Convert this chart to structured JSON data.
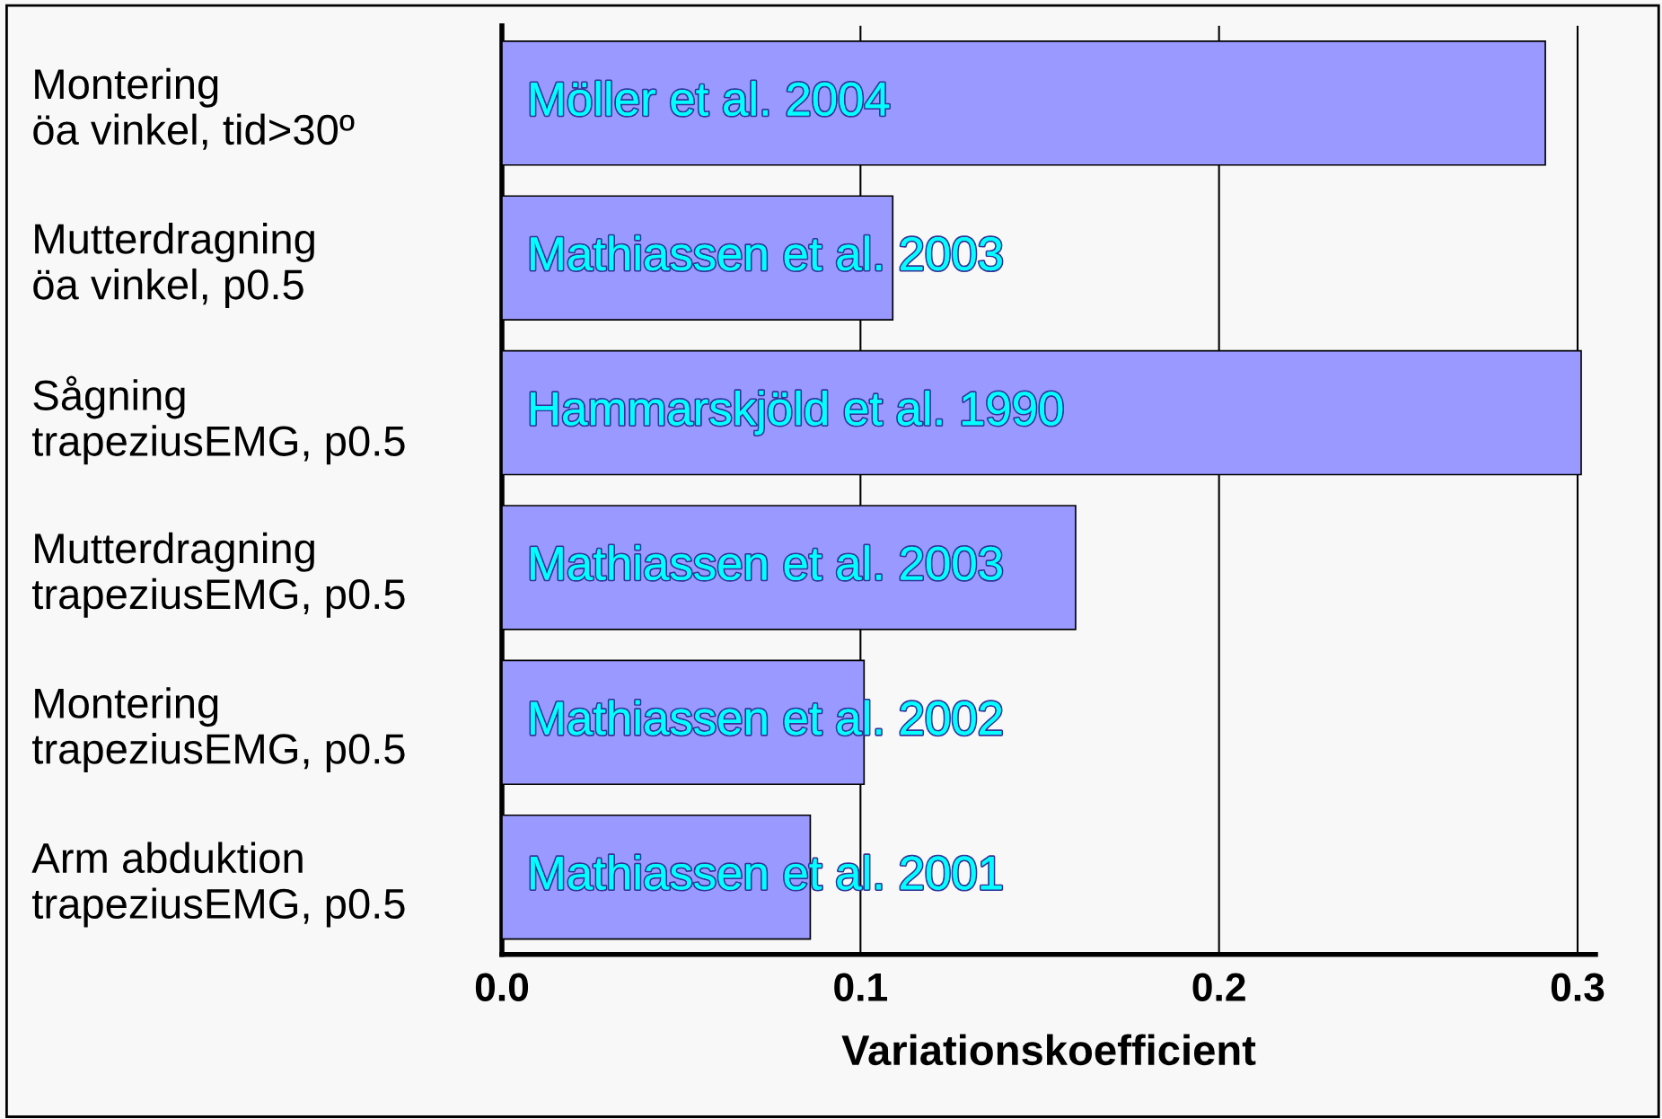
{
  "chart_data": {
    "type": "bar",
    "orientation": "horizontal",
    "categories": [
      "Montering\nöa vinkel, tid>30º",
      "Mutterdragning\nöa vinkel, p0.5",
      "Sågning\ntrapeziusEMG, p0.5",
      "Mutterdragning\ntrapeziusEMG, p0.5",
      "Montering\ntrapeziusEMG, p0.5",
      "Arm abduktion\ntrapeziusEMG, p0.5"
    ],
    "values": [
      0.291,
      0.109,
      0.301,
      0.16,
      0.101,
      0.086
    ],
    "color": "#9999ff",
    "xlabel": "Variationskoefficient",
    "xlim": [
      0,
      0.305
    ],
    "xticks": [
      {
        "value": 0,
        "label": "0.0"
      },
      0.1,
      0.2,
      0.3
    ],
    "grid": "x",
    "annotations": [
      "Möller et al. 2004",
      "Mathiassen et al. 2003",
      "Hammarskjöld et al. 1990",
      "Mathiassen et al. 2003",
      "Mathiassen et al. 2002",
      "Mathiassen et al. 2001"
    ]
  }
}
